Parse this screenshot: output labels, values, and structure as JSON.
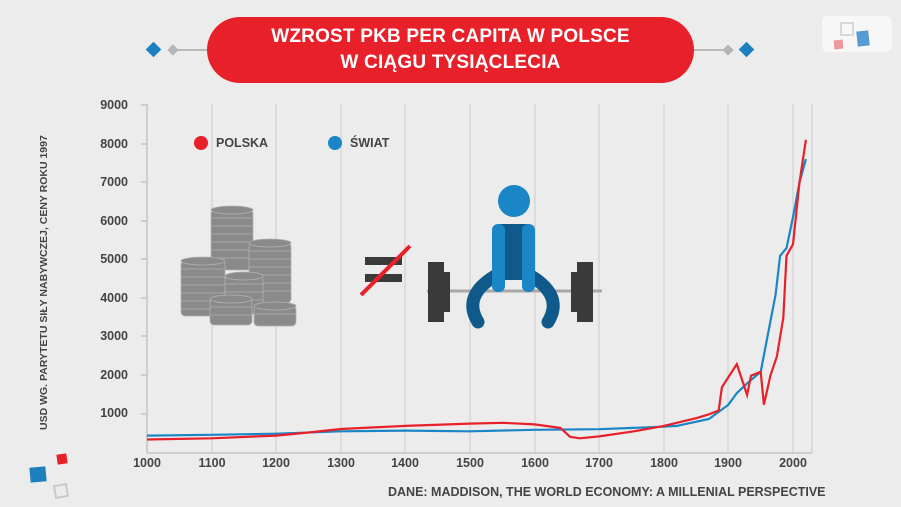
{
  "header": {
    "title_line1": "WZROST PKB PER CAPITA W POLSCE",
    "title_line2": "W CIĄGU TYSIĄCLECIA"
  },
  "logo": {
    "name": "wp-logo-icon"
  },
  "colors": {
    "polska": "#e8202a",
    "swiat": "#1b86c5",
    "title_bg": "#e8202a",
    "background": "#ececec",
    "text": "#444444"
  },
  "legend": {
    "polska": "POLSKA",
    "swiat": "ŚWIAT"
  },
  "illustration": {
    "left": "coins-stack-icon",
    "middle": "not-equal-icon",
    "right": "weightlifter-icon"
  },
  "source": "DANE: MADDISON, THE WORLD ECONOMY: A MILLENIAL PERSPECTIVE",
  "chart_data": {
    "type": "line",
    "title": "WZROST PKB PER CAPITA W POLSCE W CIĄGU TYSIĄCLECIA",
    "xlabel": "",
    "ylabel": "USD WG. PARYTETU SIŁY NABYWCZEJ, CENY ROKU 1997",
    "xlim": [
      1000,
      2030
    ],
    "ylim": [
      0,
      9000
    ],
    "x_ticks": [
      "1000",
      "1100",
      "1200",
      "1300",
      "1400",
      "1500",
      "1600",
      "1700",
      "1800",
      "1900",
      "2000"
    ],
    "y_ticks": [
      "1000",
      "2000",
      "3000",
      "4000",
      "5000",
      "6000",
      "7000",
      "8000",
      "9000"
    ],
    "grid": "vertical",
    "legend_position": "top-left",
    "series": [
      {
        "name": "POLSKA",
        "color": "#e8202a",
        "points": [
          [
            1000,
            350
          ],
          [
            1100,
            380
          ],
          [
            1200,
            450
          ],
          [
            1250,
            530
          ],
          [
            1300,
            620
          ],
          [
            1400,
            700
          ],
          [
            1500,
            760
          ],
          [
            1550,
            780
          ],
          [
            1600,
            740
          ],
          [
            1640,
            650
          ],
          [
            1655,
            420
          ],
          [
            1670,
            380
          ],
          [
            1700,
            430
          ],
          [
            1750,
            550
          ],
          [
            1800,
            700
          ],
          [
            1850,
            900
          ],
          [
            1870,
            1000
          ],
          [
            1885,
            1100
          ],
          [
            1890,
            1700
          ],
          [
            1913,
            2300
          ],
          [
            1929,
            1500
          ],
          [
            1935,
            2000
          ],
          [
            1950,
            2100
          ],
          [
            1955,
            1250
          ],
          [
            1965,
            2000
          ],
          [
            1975,
            2500
          ],
          [
            1985,
            3500
          ],
          [
            1990,
            5100
          ],
          [
            2000,
            5400
          ],
          [
            2010,
            7000
          ],
          [
            2020,
            8100
          ]
        ]
      },
      {
        "name": "ŚWIAT",
        "color": "#1b86c5",
        "points": [
          [
            1000,
            450
          ],
          [
            1100,
            470
          ],
          [
            1200,
            500
          ],
          [
            1300,
            560
          ],
          [
            1400,
            580
          ],
          [
            1500,
            560
          ],
          [
            1600,
            600
          ],
          [
            1700,
            615
          ],
          [
            1800,
            680
          ],
          [
            1820,
            700
          ],
          [
            1870,
            880
          ],
          [
            1900,
            1250
          ],
          [
            1913,
            1550
          ],
          [
            1929,
            1800
          ],
          [
            1950,
            2100
          ],
          [
            1973,
            4100
          ],
          [
            1980,
            5100
          ],
          [
            1990,
            5300
          ],
          [
            2000,
            6100
          ],
          [
            2010,
            7000
          ],
          [
            2020,
            7600
          ]
        ]
      }
    ]
  }
}
